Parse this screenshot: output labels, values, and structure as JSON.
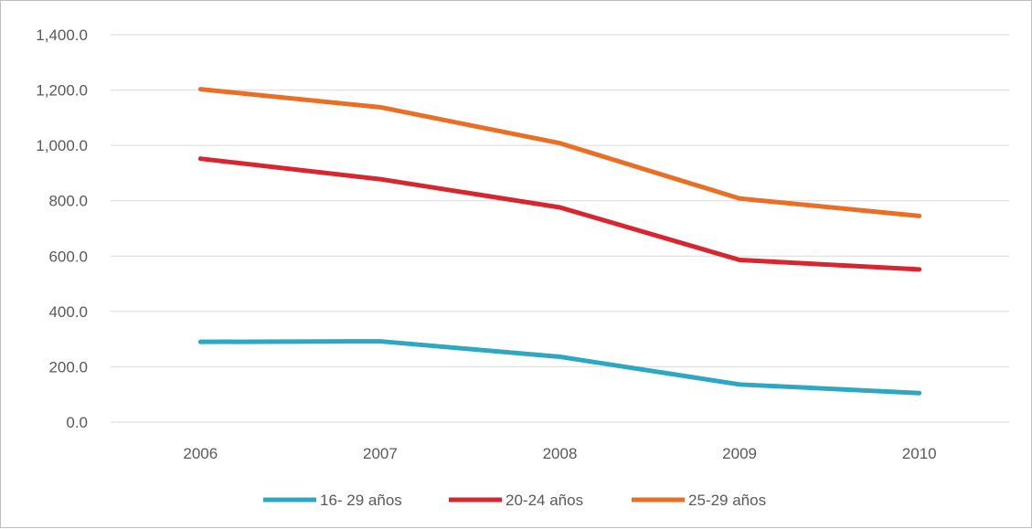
{
  "chart_data": {
    "type": "line",
    "title": "",
    "xlabel": "",
    "ylabel": "",
    "categories": [
      "2006",
      "2007",
      "2008",
      "2009",
      "2010"
    ],
    "ylim": [
      0,
      1400
    ],
    "yticks": [
      "0.0",
      "200.0",
      "400.0",
      "600.0",
      "800.0",
      "1,000.0",
      "1,200.0",
      "1,400.0"
    ],
    "grid": true,
    "legend_position": "bottom",
    "series": [
      {
        "name": "16- 29 años",
        "color": "#2ea8c1",
        "values": [
          290,
          292,
          236,
          136,
          105
        ]
      },
      {
        "name": "20-24 años",
        "color": "#d9252d",
        "values": [
          952,
          878,
          776,
          586,
          552
        ]
      },
      {
        "name": "25-29 años",
        "color": "#ea6f25",
        "values": [
          1203,
          1138,
          1008,
          808,
          745
        ]
      }
    ]
  }
}
